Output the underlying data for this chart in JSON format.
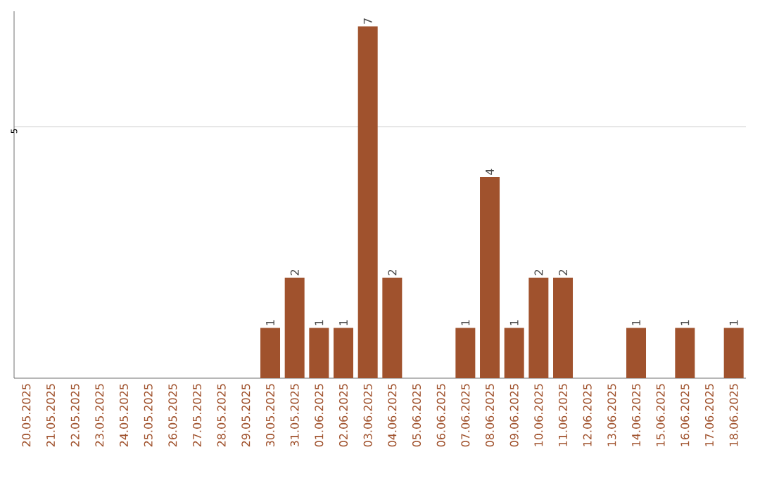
{
  "chart_data": {
    "type": "bar",
    "categories": [
      "20.05.2025",
      "21.05.2025",
      "22.05.2025",
      "23.05.2025",
      "24.05.2025",
      "25.05.2025",
      "26.05.2025",
      "27.05.2025",
      "28.05.2025",
      "29.05.2025",
      "30.05.2025",
      "31.05.2025",
      "01.06.2025",
      "02.06.2025",
      "03.06.2025",
      "04.06.2025",
      "05.06.2025",
      "06.06.2025",
      "07.06.2025",
      "08.06.2025",
      "09.06.2025",
      "10.06.2025",
      "11.06.2025",
      "12.06.2025",
      "13.06.2025",
      "14.06.2025",
      "15.06.2025",
      "16.06.2025",
      "17.06.2025",
      "18.06.2025"
    ],
    "values": [
      0,
      0,
      0,
      0,
      0,
      0,
      0,
      0,
      0,
      0,
      1,
      2,
      1,
      1,
      7,
      2,
      0,
      0,
      1,
      4,
      1,
      2,
      2,
      0,
      0,
      1,
      0,
      1,
      0,
      1
    ],
    "value_labels": [
      null,
      null,
      null,
      null,
      null,
      null,
      null,
      null,
      null,
      null,
      "1",
      "2",
      "1",
      "1",
      "7",
      "2",
      null,
      null,
      "1",
      "4",
      "1",
      "2",
      "2",
      null,
      null,
      "1",
      null,
      "1",
      null,
      "1"
    ],
    "color": "#a0522d",
    "ylim": [
      0,
      7.3
    ],
    "yticks": [
      5
    ],
    "grid": "y"
  }
}
